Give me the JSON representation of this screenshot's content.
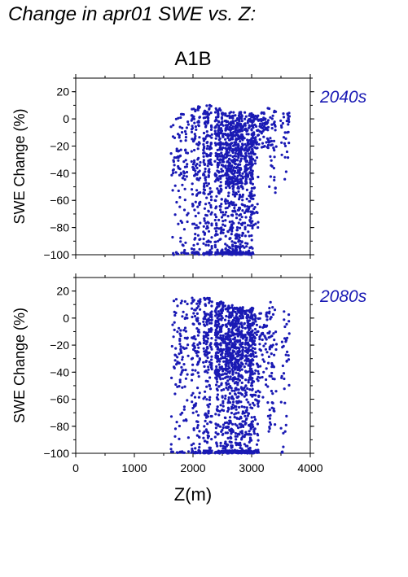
{
  "page_title": "Change in apr01 SWE vs. Z:",
  "scenario_title": "A1B",
  "colors": {
    "points": "#1a1ab4",
    "period_label": "#1a1ab4",
    "axis": "#000000"
  },
  "xlabel": "Z(m)",
  "chart_data": [
    {
      "type": "scatter",
      "period": "2040s",
      "ylabel": "SWE Change (%)",
      "xlim": [
        0,
        4000
      ],
      "ylim": [
        -100,
        30
      ],
      "xticks": [
        0,
        1000,
        2000,
        3000,
        4000
      ],
      "yticks": [
        -100,
        -80,
        -60,
        -40,
        -20,
        0,
        20
      ],
      "clusters": [
        {
          "x": 1700,
          "ymin": -100,
          "ymax": 10,
          "n": 40
        },
        {
          "x": 1850,
          "ymin": -100,
          "ymax": 8,
          "n": 55
        },
        {
          "x": 2050,
          "ymin": -100,
          "ymax": 10,
          "n": 110
        },
        {
          "x": 2250,
          "ymin": -100,
          "ymax": 10,
          "n": 160
        },
        {
          "x": 2450,
          "ymin": -100,
          "ymax": 8,
          "n": 200
        },
        {
          "x": 2620,
          "ymin": -100,
          "ymax": 5,
          "n": 260
        },
        {
          "x": 2780,
          "ymin": -100,
          "ymax": 5,
          "n": 260
        },
        {
          "x": 2950,
          "ymin": -100,
          "ymax": 5,
          "n": 200
        },
        {
          "x": 3050,
          "ymin": -80,
          "ymax": 3,
          "n": 90
        },
        {
          "x": 3200,
          "ymin": -22,
          "ymax": 5,
          "n": 45
        },
        {
          "x": 3350,
          "ymin": -55,
          "ymax": 8,
          "n": 45
        },
        {
          "x": 3570,
          "ymin": -45,
          "ymax": 5,
          "n": 30
        }
      ]
    },
    {
      "type": "scatter",
      "period": "2080s",
      "ylabel": "SWE Change (%)",
      "xlim": [
        0,
        4000
      ],
      "ylim": [
        -100,
        30
      ],
      "xticks": [
        0,
        1000,
        2000,
        3000,
        4000
      ],
      "yticks": [
        -100,
        -80,
        -60,
        -40,
        -20,
        0,
        20
      ],
      "clusters": [
        {
          "x": 1700,
          "ymin": -100,
          "ymax": 15,
          "n": 40
        },
        {
          "x": 1850,
          "ymin": -100,
          "ymax": 15,
          "n": 55
        },
        {
          "x": 2050,
          "ymin": -100,
          "ymax": 15,
          "n": 110
        },
        {
          "x": 2250,
          "ymin": -100,
          "ymax": 15,
          "n": 160
        },
        {
          "x": 2450,
          "ymin": -100,
          "ymax": 12,
          "n": 220
        },
        {
          "x": 2620,
          "ymin": -100,
          "ymax": 10,
          "n": 280
        },
        {
          "x": 2780,
          "ymin": -100,
          "ymax": 8,
          "n": 280
        },
        {
          "x": 2950,
          "ymin": -100,
          "ymax": 8,
          "n": 220
        },
        {
          "x": 3050,
          "ymin": -100,
          "ymax": 5,
          "n": 100
        },
        {
          "x": 3200,
          "ymin": -60,
          "ymax": 5,
          "n": 45
        },
        {
          "x": 3350,
          "ymin": -85,
          "ymax": 12,
          "n": 60
        },
        {
          "x": 3570,
          "ymin": -100,
          "ymax": 10,
          "n": 35
        }
      ]
    }
  ]
}
